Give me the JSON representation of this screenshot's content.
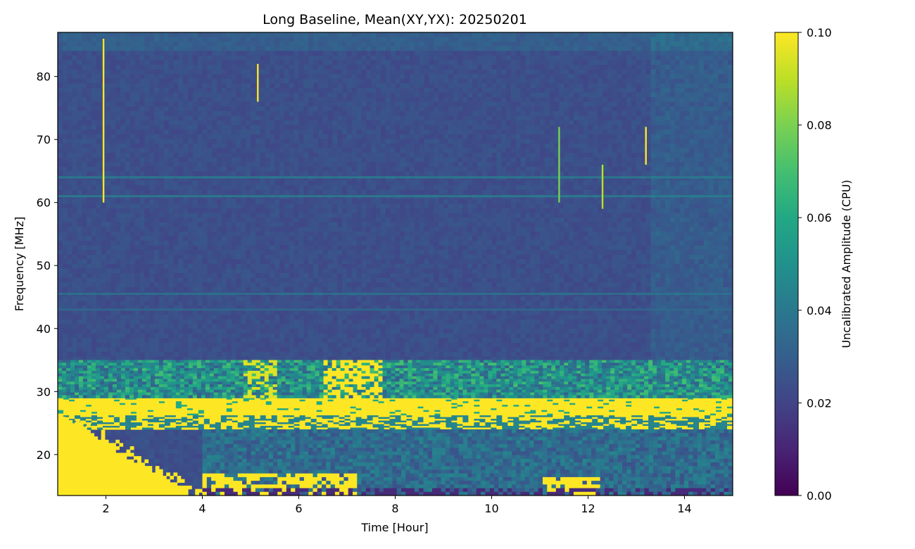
{
  "chart_data": {
    "type": "heatmap",
    "title": "Long Baseline, Mean(XY,YX): 20250201",
    "xlabel": "Time [Hour]",
    "ylabel": "Frequency [MHz]",
    "xlim": [
      1.0,
      15.0
    ],
    "ylim": [
      13.5,
      87.0
    ],
    "x_ticks": [
      2,
      4,
      6,
      8,
      10,
      12,
      14
    ],
    "y_ticks": [
      20,
      30,
      40,
      50,
      60,
      70,
      80
    ],
    "colormap": "viridis",
    "colorbar": {
      "label": "Uncalibrated Amplitude (CPU)",
      "range": [
        0.0,
        0.1
      ],
      "ticks": [
        "0.00",
        "0.02",
        "0.04",
        "0.06",
        "0.08",
        "0.10"
      ]
    },
    "features": [
      {
        "kind": "saturated-band",
        "freq_range_mhz": [
          24.0,
          29.0
        ],
        "time_range_h": [
          1.0,
          15.0
        ],
        "level": 0.1
      },
      {
        "kind": "striped-band",
        "freq_range_mhz": [
          29.0,
          35.0
        ],
        "time_range_h": [
          1.0,
          15.0
        ],
        "level": 0.05
      },
      {
        "kind": "saturated-region",
        "freq_range_mhz": [
          13.5,
          26.0
        ],
        "time_range_h": [
          1.0,
          4.0
        ],
        "level": 0.1
      },
      {
        "kind": "low-band",
        "freq_range_mhz": [
          13.5,
          24.0
        ],
        "time_range_h": [
          4.0,
          15.0
        ],
        "level": 0.035
      },
      {
        "kind": "horizontal-line",
        "freq_mhz": 64.0,
        "level": 0.045
      },
      {
        "kind": "horizontal-line",
        "freq_mhz": 61.0,
        "level": 0.045
      },
      {
        "kind": "horizontal-line",
        "freq_mhz": 45.5,
        "level": 0.04
      },
      {
        "kind": "horizontal-line",
        "freq_mhz": 43.0,
        "level": 0.035
      },
      {
        "kind": "vertical-spike",
        "time_h": 1.95,
        "freq_range_mhz": [
          60,
          86
        ],
        "level": 0.1
      },
      {
        "kind": "vertical-spike",
        "time_h": 5.15,
        "freq_range_mhz": [
          76,
          82
        ],
        "level": 0.1
      },
      {
        "kind": "vertical-spike",
        "time_h": 13.2,
        "freq_range_mhz": [
          66,
          72
        ],
        "level": 0.1
      },
      {
        "kind": "vertical-spike",
        "time_h": 12.3,
        "freq_range_mhz": [
          59,
          66
        ],
        "level": 0.09
      },
      {
        "kind": "vertical-spike",
        "time_h": 11.4,
        "freq_range_mhz": [
          60,
          72
        ],
        "level": 0.08
      }
    ],
    "grid": false,
    "legend": "none"
  }
}
